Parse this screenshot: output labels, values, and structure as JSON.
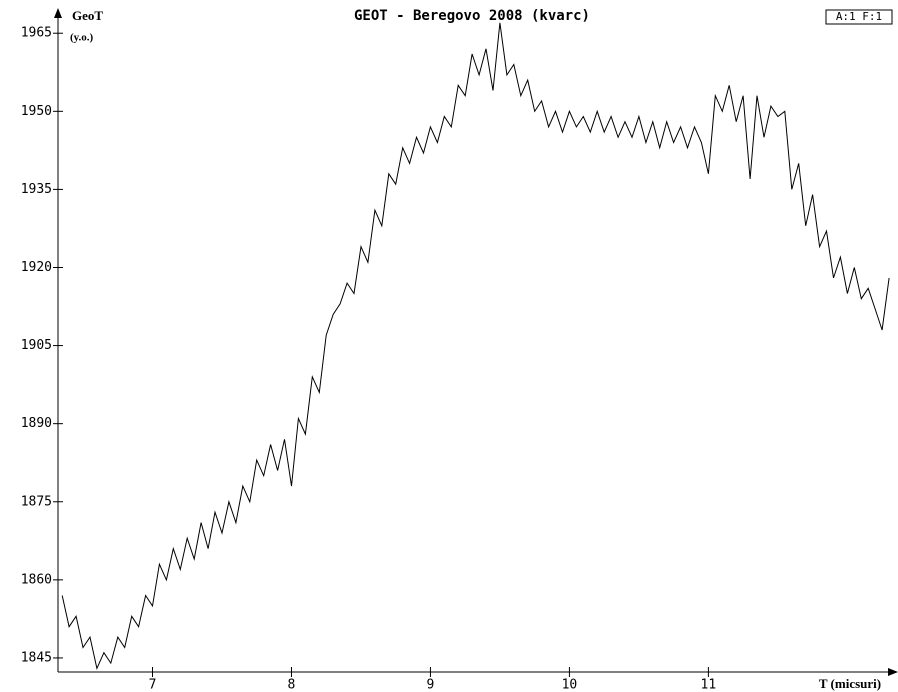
{
  "chart_data": {
    "type": "line",
    "title": "GEOT - Beregovo 2008 (kvarc)",
    "y_label": "GeoT",
    "y_unit": "(y.o.)",
    "x_label": "T (micsuri)",
    "badge": "A:1 F:1",
    "xlim": [
      6.32,
      12.35
    ],
    "ylim": [
      1842.3,
      1968.5
    ],
    "xticks": [
      7,
      8,
      9,
      10,
      11
    ],
    "yticks": [
      1845,
      1860,
      1875,
      1890,
      1905,
      1920,
      1935,
      1950,
      1965
    ],
    "series": [
      {
        "name": "GeoT",
        "color": "#000000",
        "x": [
          6.35,
          6.4,
          6.45,
          6.5,
          6.55,
          6.6,
          6.65,
          6.7,
          6.75,
          6.8,
          6.85,
          6.9,
          6.95,
          7.0,
          7.05,
          7.1,
          7.15,
          7.2,
          7.25,
          7.3,
          7.35,
          7.4,
          7.45,
          7.5,
          7.55,
          7.6,
          7.65,
          7.7,
          7.75,
          7.8,
          7.85,
          7.9,
          7.95,
          8.0,
          8.05,
          8.1,
          8.15,
          8.2,
          8.25,
          8.3,
          8.35,
          8.4,
          8.45,
          8.5,
          8.55,
          8.6,
          8.65,
          8.7,
          8.75,
          8.8,
          8.85,
          8.9,
          8.95,
          9.0,
          9.05,
          9.1,
          9.15,
          9.2,
          9.25,
          9.3,
          9.35,
          9.4,
          9.45,
          9.5,
          9.55,
          9.6,
          9.65,
          9.7,
          9.75,
          9.8,
          9.85,
          9.9,
          9.95,
          10.0,
          10.05,
          10.1,
          10.15,
          10.2,
          10.25,
          10.3,
          10.35,
          10.4,
          10.45,
          10.5,
          10.55,
          10.6,
          10.65,
          10.7,
          10.75,
          10.8,
          10.85,
          10.9,
          10.95,
          11.0,
          11.05,
          11.1,
          11.15,
          11.2,
          11.25,
          11.3,
          11.35,
          11.4,
          11.45,
          11.5,
          11.55,
          11.6,
          11.65,
          11.7,
          11.75,
          11.8,
          11.85,
          11.9,
          11.95,
          12.0,
          12.05,
          12.1,
          12.15,
          12.2,
          12.25,
          12.3
        ],
        "values": [
          1857,
          1851,
          1853,
          1847,
          1849,
          1843,
          1846,
          1844,
          1849,
          1847,
          1853,
          1851,
          1857,
          1855,
          1863,
          1860,
          1866,
          1862,
          1868,
          1864,
          1871,
          1866,
          1873,
          1869,
          1875,
          1871,
          1878,
          1875,
          1883,
          1880,
          1886,
          1881,
          1887,
          1878,
          1891,
          1888,
          1899,
          1896,
          1907,
          1911,
          1913,
          1917,
          1915,
          1924,
          1921,
          1931,
          1928,
          1938,
          1936,
          1943,
          1940,
          1945,
          1942,
          1947,
          1944,
          1949,
          1947,
          1955,
          1953,
          1961,
          1957,
          1962,
          1954,
          1967,
          1957,
          1959,
          1953,
          1956,
          1950,
          1952,
          1947,
          1950,
          1946,
          1950,
          1947,
          1949,
          1946,
          1950,
          1946,
          1949,
          1945,
          1948,
          1945,
          1949,
          1944,
          1948,
          1943,
          1948,
          1944,
          1947,
          1943,
          1947,
          1944,
          1938,
          1953,
          1950,
          1955,
          1948,
          1953,
          1937,
          1953,
          1945,
          1951,
          1949,
          1950,
          1935,
          1940,
          1928,
          1934,
          1924,
          1927,
          1918,
          1922,
          1915,
          1920,
          1914,
          1916,
          1912,
          1908,
          1918
        ]
      }
    ]
  }
}
